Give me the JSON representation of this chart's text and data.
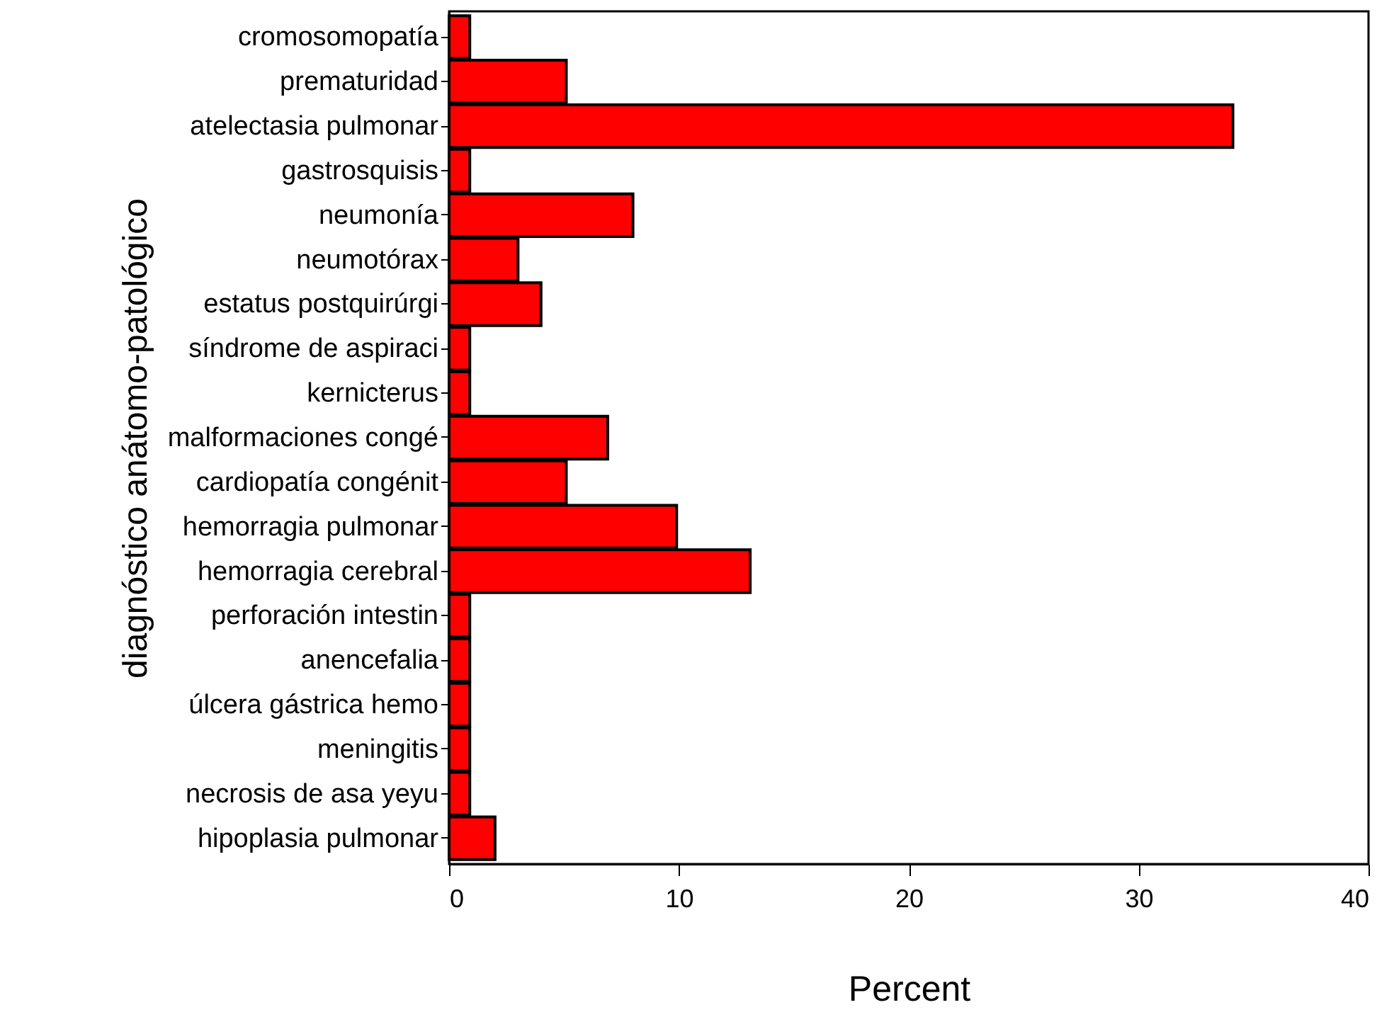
{
  "chart_data": {
    "type": "bar",
    "orientation": "horizontal",
    "xlabel": "Percent",
    "ylabel": "diagnóstico anátomo-patológico",
    "categories": [
      "cromosomopatía",
      "prematuridad",
      "atelectasia pulmonar",
      "gastrosquisis",
      "neumonía",
      "neumotórax",
      "estatus postquirúrgi",
      "síndrome de aspiraci",
      "kernicterus",
      "malformaciones congé",
      "cardiopatía congénit",
      "hemorragia pulmonar",
      "hemorragia cerebral",
      "perforación intestin",
      "anencefalia",
      "úlcera gástrica hemo",
      "meningitis",
      "necrosis de asa yeyu",
      "hipoplasia pulmonar"
    ],
    "values": [
      0.9,
      5.1,
      34.1,
      0.9,
      8.0,
      3.0,
      4.0,
      0.9,
      0.9,
      6.9,
      5.1,
      9.9,
      13.1,
      0.9,
      0.9,
      0.9,
      0.9,
      0.9,
      2.0
    ],
    "color": "#ff0000",
    "xlim": [
      0,
      40
    ],
    "xticks": [
      0,
      10,
      20,
      30,
      40
    ],
    "grid": false
  }
}
